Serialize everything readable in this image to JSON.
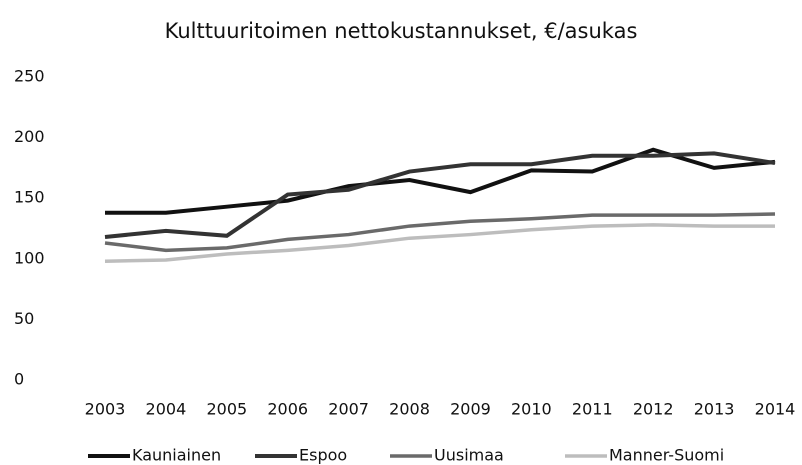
{
  "chart_data": {
    "type": "line",
    "title": "Kulttuuritoimen nettokustannukset, €/asukas",
    "categories": [
      "2003",
      "2004",
      "2005",
      "2006",
      "2007",
      "2008",
      "2009",
      "2010",
      "2011",
      "2012",
      "2013",
      "2014"
    ],
    "series": [
      {
        "name": "Kauniainen",
        "color": "#111111",
        "values": [
          138,
          138,
          143,
          148,
          160,
          165,
          155,
          173,
          172,
          190,
          175,
          180
        ]
      },
      {
        "name": "Espoo",
        "color": "#333333",
        "values": [
          118,
          123,
          119,
          153,
          157,
          172,
          178,
          178,
          185,
          185,
          187,
          179
        ]
      },
      {
        "name": "Uusimaa",
        "color": "#6a6a6a",
        "values": [
          113,
          107,
          109,
          116,
          120,
          127,
          131,
          133,
          136,
          136,
          136,
          137
        ]
      },
      {
        "name": "Manner-Suomi",
        "color": "#bdbdbd",
        "values": [
          98,
          99,
          104,
          107,
          111,
          117,
          120,
          124,
          127,
          128,
          127,
          127
        ]
      }
    ],
    "ylim": [
      0,
      250
    ],
    "yticks": [
      0,
      50,
      100,
      150,
      200,
      250
    ],
    "grid": false,
    "legend": "bottom"
  }
}
